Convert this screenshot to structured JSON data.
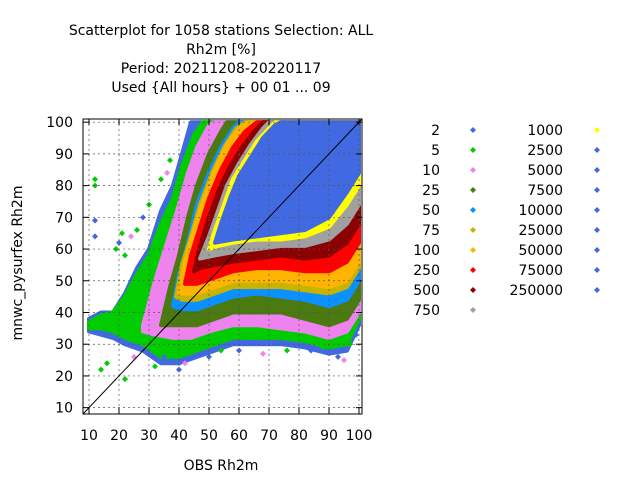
{
  "chart_data": {
    "type": "scatter",
    "title_lines": [
      "Scatterplot for 1058 stations Selection: ALL",
      "Rh2m [%]",
      "Period: 20211208-20220117",
      "Used {All hours} + 00 01 ... 09"
    ],
    "xlabel": "OBS Rh2m",
    "ylabel": "mnwc_pysurfex Rh2m",
    "xlim": [
      8,
      101
    ],
    "ylim": [
      8,
      101
    ],
    "xticks": [
      10,
      20,
      30,
      40,
      50,
      60,
      70,
      80,
      90,
      100
    ],
    "yticks": [
      10,
      20,
      30,
      40,
      50,
      60,
      70,
      80,
      90,
      100
    ],
    "grid": true,
    "diagonal_line": true,
    "legend_placement": "right",
    "legend_entries": [
      {
        "label": "2",
        "color": "#4169e1"
      },
      {
        "label": "5",
        "color": "#00cc00"
      },
      {
        "label": "10",
        "color": "#ee82ee"
      },
      {
        "label": "25",
        "color": "#4a7a10"
      },
      {
        "label": "50",
        "color": "#0a90ff"
      },
      {
        "label": "75",
        "color": "#c8b400"
      },
      {
        "label": "100",
        "color": "#ffb400"
      },
      {
        "label": "250",
        "color": "#ff0000"
      },
      {
        "label": "500",
        "color": "#8b0000"
      },
      {
        "label": "750",
        "color": "#a0a0a0"
      },
      {
        "label": "1000",
        "color": "#ffff00"
      },
      {
        "label": "2500",
        "color": "#4169e1"
      },
      {
        "label": "5000",
        "color": "#4169e1"
      },
      {
        "label": "7500",
        "color": "#4169e1"
      },
      {
        "label": "10000",
        "color": "#4169e1"
      },
      {
        "label": "25000",
        "color": "#4169e1"
      },
      {
        "label": "50000",
        "color": "#4169e1"
      },
      {
        "label": "75000",
        "color": "#4169e1"
      },
      {
        "label": "250000",
        "color": "#4169e1"
      }
    ],
    "density_bands": [
      {
        "threshold": "2",
        "color": "#4169e1",
        "outline": [
          [
            10,
            38
          ],
          [
            14,
            40
          ],
          [
            18,
            40
          ],
          [
            22,
            46
          ],
          [
            26,
            54
          ],
          [
            30,
            60
          ],
          [
            34,
            72
          ],
          [
            38,
            80
          ],
          [
            41,
            90
          ],
          [
            44,
            100
          ],
          [
            100,
            100
          ],
          [
            100,
            36
          ],
          [
            96,
            28
          ],
          [
            90,
            27
          ],
          [
            82,
            29
          ],
          [
            74,
            30
          ],
          [
            66,
            30
          ],
          [
            58,
            30
          ],
          [
            52,
            28
          ],
          [
            46,
            26
          ],
          [
            40,
            24
          ],
          [
            34,
            24
          ],
          [
            28,
            28
          ],
          [
            22,
            30
          ],
          [
            18,
            32
          ],
          [
            14,
            33
          ],
          [
            10,
            34
          ]
        ]
      },
      {
        "threshold": "5",
        "color": "#00cc00",
        "outline": [
          [
            10,
            37
          ],
          [
            14,
            39
          ],
          [
            18,
            40
          ],
          [
            22,
            45
          ],
          [
            26,
            52
          ],
          [
            30,
            58
          ],
          [
            34,
            68
          ],
          [
            38,
            76
          ],
          [
            41,
            86
          ],
          [
            45,
            96
          ],
          [
            48,
            100
          ],
          [
            100,
            100
          ],
          [
            100,
            38
          ],
          [
            96,
            30
          ],
          [
            90,
            29
          ],
          [
            82,
            31
          ],
          [
            74,
            32
          ],
          [
            66,
            32
          ],
          [
            58,
            32
          ],
          [
            52,
            30
          ],
          [
            46,
            28
          ],
          [
            40,
            26
          ],
          [
            34,
            26
          ],
          [
            28,
            30
          ],
          [
            22,
            32
          ],
          [
            18,
            34
          ],
          [
            14,
            35
          ],
          [
            10,
            35
          ]
        ]
      },
      {
        "threshold": "10",
        "color": "#ee82ee",
        "outline": [
          [
            28,
            36
          ],
          [
            32,
            50
          ],
          [
            36,
            62
          ],
          [
            40,
            74
          ],
          [
            43,
            84
          ],
          [
            46,
            92
          ],
          [
            50,
            99
          ],
          [
            52,
            100
          ],
          [
            100,
            100
          ],
          [
            100,
            40
          ],
          [
            96,
            34
          ],
          [
            90,
            32
          ],
          [
            82,
            34
          ],
          [
            74,
            35
          ],
          [
            66,
            36
          ],
          [
            58,
            36
          ],
          [
            50,
            34
          ],
          [
            44,
            32
          ],
          [
            38,
            32
          ],
          [
            32,
            33
          ],
          [
            28,
            34
          ]
        ]
      },
      {
        "threshold": "25",
        "color": "#4a7a10",
        "outline": [
          [
            34,
            36
          ],
          [
            37,
            48
          ],
          [
            40,
            58
          ],
          [
            43,
            70
          ],
          [
            46,
            80
          ],
          [
            50,
            90
          ],
          [
            54,
            97
          ],
          [
            56,
            100
          ],
          [
            100,
            100
          ],
          [
            100,
            44
          ],
          [
            96,
            38
          ],
          [
            90,
            36
          ],
          [
            82,
            38
          ],
          [
            74,
            40
          ],
          [
            66,
            40
          ],
          [
            58,
            40
          ],
          [
            52,
            38
          ],
          [
            46,
            36
          ],
          [
            40,
            36
          ],
          [
            36,
            36
          ]
        ]
      },
      {
        "threshold": "50",
        "color": "#0a90ff",
        "outline": [
          [
            38,
            42
          ],
          [
            40,
            52
          ],
          [
            43,
            62
          ],
          [
            46,
            74
          ],
          [
            50,
            84
          ],
          [
            54,
            92
          ],
          [
            58,
            98
          ],
          [
            60,
            100
          ],
          [
            100,
            100
          ],
          [
            100,
            50
          ],
          [
            96,
            44
          ],
          [
            90,
            42
          ],
          [
            82,
            44
          ],
          [
            74,
            45
          ],
          [
            66,
            46
          ],
          [
            58,
            45
          ],
          [
            52,
            43
          ],
          [
            46,
            41
          ],
          [
            41,
            41
          ]
        ]
      },
      {
        "threshold": "75",
        "color": "#c8b400",
        "outline": [
          [
            39,
            45
          ],
          [
            41,
            55
          ],
          [
            44,
            64
          ],
          [
            47,
            74
          ],
          [
            51,
            84
          ],
          [
            55,
            92
          ],
          [
            59,
            98
          ],
          [
            62,
            100
          ],
          [
            100,
            100
          ],
          [
            100,
            54
          ],
          [
            96,
            48
          ],
          [
            90,
            46
          ],
          [
            82,
            47
          ],
          [
            74,
            48
          ],
          [
            66,
            48
          ],
          [
            58,
            48
          ],
          [
            52,
            46
          ],
          [
            46,
            44
          ],
          [
            41,
            44
          ]
        ]
      },
      {
        "threshold": "100",
        "color": "#ffb400",
        "outline": [
          [
            40,
            46
          ],
          [
            42,
            56
          ],
          [
            45,
            66
          ],
          [
            48,
            75
          ],
          [
            52,
            85
          ],
          [
            56,
            93
          ],
          [
            60,
            98
          ],
          [
            63,
            100
          ],
          [
            100,
            100
          ],
          [
            100,
            56
          ],
          [
            96,
            50
          ],
          [
            90,
            48
          ],
          [
            82,
            49
          ],
          [
            74,
            50
          ],
          [
            66,
            50
          ],
          [
            58,
            50
          ],
          [
            52,
            48
          ],
          [
            46,
            46
          ],
          [
            42,
            46
          ]
        ]
      },
      {
        "threshold": "250",
        "color": "#ff0000",
        "outline": [
          [
            42,
            49
          ],
          [
            44,
            58
          ],
          [
            47,
            67
          ],
          [
            50,
            76
          ],
          [
            54,
            85
          ],
          [
            58,
            92
          ],
          [
            62,
            97
          ],
          [
            66,
            100
          ],
          [
            100,
            100
          ],
          [
            100,
            62
          ],
          [
            96,
            56
          ],
          [
            90,
            53
          ],
          [
            82,
            53
          ],
          [
            74,
            54
          ],
          [
            66,
            54
          ],
          [
            58,
            53
          ],
          [
            52,
            51
          ],
          [
            46,
            49
          ],
          [
            43,
            49
          ]
        ]
      },
      {
        "threshold": "500",
        "color": "#8b0000",
        "outline": [
          [
            45,
            53
          ],
          [
            47,
            61
          ],
          [
            50,
            70
          ],
          [
            53,
            78
          ],
          [
            57,
            86
          ],
          [
            61,
            92
          ],
          [
            65,
            97
          ],
          [
            68,
            100
          ],
          [
            100,
            100
          ],
          [
            100,
            68
          ],
          [
            96,
            62
          ],
          [
            90,
            58
          ],
          [
            82,
            57
          ],
          [
            74,
            58
          ],
          [
            66,
            57
          ],
          [
            58,
            56
          ],
          [
            52,
            55
          ],
          [
            47,
            54
          ]
        ]
      },
      {
        "threshold": "750",
        "color": "#a0a0a0",
        "outline": [
          [
            47,
            57
          ],
          [
            50,
            64
          ],
          [
            53,
            72
          ],
          [
            56,
            80
          ],
          [
            60,
            87
          ],
          [
            64,
            93
          ],
          [
            68,
            98
          ],
          [
            70,
            100
          ],
          [
            100,
            100
          ],
          [
            100,
            74
          ],
          [
            96,
            68
          ],
          [
            90,
            63
          ],
          [
            82,
            61
          ],
          [
            74,
            61
          ],
          [
            66,
            60
          ],
          [
            58,
            59
          ],
          [
            52,
            58
          ]
        ]
      },
      {
        "threshold": "1000",
        "color": "#ffff00",
        "outline": [
          [
            50,
            60
          ],
          [
            52,
            66
          ],
          [
            55,
            74
          ],
          [
            58,
            82
          ],
          [
            62,
            88
          ],
          [
            66,
            94
          ],
          [
            70,
            98
          ],
          [
            72,
            100
          ],
          [
            100,
            100
          ],
          [
            100,
            80
          ],
          [
            96,
            74
          ],
          [
            90,
            67
          ],
          [
            82,
            64
          ],
          [
            74,
            63
          ],
          [
            66,
            63
          ],
          [
            58,
            62
          ],
          [
            53,
            61
          ]
        ]
      },
      {
        "threshold": "2500",
        "color": "#4169e1",
        "outline": [
          [
            52,
            62
          ],
          [
            54,
            68
          ],
          [
            57,
            76
          ],
          [
            60,
            83
          ],
          [
            64,
            89
          ],
          [
            68,
            95
          ],
          [
            72,
            99
          ],
          [
            74,
            100
          ],
          [
            100,
            100
          ],
          [
            100,
            84
          ],
          [
            96,
            78
          ],
          [
            90,
            70
          ],
          [
            82,
            66
          ],
          [
            74,
            65
          ],
          [
            66,
            64
          ],
          [
            58,
            63
          ]
        ]
      }
    ],
    "points": [
      {
        "x": 12,
        "y": 82,
        "color": "#00cc00"
      },
      {
        "x": 12,
        "y": 80,
        "color": "#00cc00"
      },
      {
        "x": 12,
        "y": 69,
        "color": "#4169e1"
      },
      {
        "x": 12,
        "y": 64,
        "color": "#4169e1"
      },
      {
        "x": 14,
        "y": 22,
        "color": "#00cc00"
      },
      {
        "x": 16,
        "y": 24,
        "color": "#00cc00"
      },
      {
        "x": 19,
        "y": 60,
        "color": "#00cc00"
      },
      {
        "x": 20,
        "y": 62,
        "color": "#4169e1"
      },
      {
        "x": 21,
        "y": 65,
        "color": "#00cc00"
      },
      {
        "x": 22,
        "y": 58,
        "color": "#00cc00"
      },
      {
        "x": 22,
        "y": 19,
        "color": "#00cc00"
      },
      {
        "x": 25,
        "y": 26,
        "color": "#ee82ee"
      },
      {
        "x": 24,
        "y": 64,
        "color": "#ee82ee"
      },
      {
        "x": 26,
        "y": 66,
        "color": "#00cc00"
      },
      {
        "x": 28,
        "y": 70,
        "color": "#4169e1"
      },
      {
        "x": 30,
        "y": 74,
        "color": "#00cc00"
      },
      {
        "x": 32,
        "y": 23,
        "color": "#00cc00"
      },
      {
        "x": 34,
        "y": 82,
        "color": "#00cc00"
      },
      {
        "x": 35,
        "y": 26,
        "color": "#4169e1"
      },
      {
        "x": 36,
        "y": 84,
        "color": "#ee82ee"
      },
      {
        "x": 37,
        "y": 88,
        "color": "#00cc00"
      },
      {
        "x": 40,
        "y": 22,
        "color": "#4169e1"
      },
      {
        "x": 42,
        "y": 24,
        "color": "#ee82ee"
      },
      {
        "x": 44,
        "y": 28,
        "color": "#00cc00"
      },
      {
        "x": 50,
        "y": 26,
        "color": "#4169e1"
      },
      {
        "x": 54,
        "y": 28,
        "color": "#00cc00"
      },
      {
        "x": 60,
        "y": 28,
        "color": "#4169e1"
      },
      {
        "x": 68,
        "y": 27,
        "color": "#ee82ee"
      },
      {
        "x": 76,
        "y": 28,
        "color": "#00cc00"
      },
      {
        "x": 84,
        "y": 28,
        "color": "#4169e1"
      },
      {
        "x": 88,
        "y": 29,
        "color": "#00cc00"
      },
      {
        "x": 93,
        "y": 26,
        "color": "#4169e1"
      },
      {
        "x": 95,
        "y": 25,
        "color": "#ee82ee"
      },
      {
        "x": 97,
        "y": 30,
        "color": "#00cc00"
      },
      {
        "x": 99,
        "y": 33,
        "color": "#4169e1"
      }
    ]
  }
}
